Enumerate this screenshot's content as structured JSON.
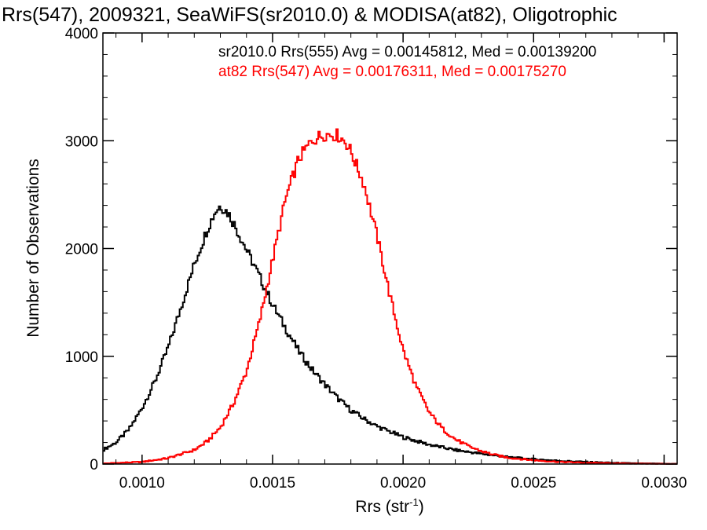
{
  "chart_data": {
    "type": "line",
    "title": "Rrs(547), 2009321, SeaWiFS(sr2010.0) & MODISA(at82), Oligotrophic",
    "xlabel": "Rrs (str",
    "xlabel_sup": "-1",
    "xlabel_close": ")",
    "ylabel": "Number of Observations",
    "xlim": [
      0.00085,
      0.00305
    ],
    "ylim": [
      0,
      4000
    ],
    "x_ticks": [
      0.001,
      0.0015,
      0.002,
      0.0025,
      0.003
    ],
    "x_tick_labels": [
      "0.0010",
      "0.0015",
      "0.0020",
      "0.0025",
      "0.0030"
    ],
    "y_ticks": [
      0,
      1000,
      2000,
      3000,
      4000
    ],
    "y_tick_labels": [
      "0",
      "1000",
      "2000",
      "3000",
      "4000"
    ],
    "grid": false,
    "legend_placement": "top-right",
    "annotations": [
      {
        "text": "sr2010.0 Rrs(555) Avg = 0.00145812, Med = 0.00139200",
        "color": "#000000"
      },
      {
        "text": "at82 Rrs(547) Avg = 0.00176311, Med = 0.00175270",
        "color": "#ff0000"
      }
    ],
    "series": [
      {
        "color": "#000000",
        "style": "step",
        "x": [
          0.00085,
          0.0009,
          0.00095,
          0.001,
          0.00105,
          0.0011,
          0.00115,
          0.0012,
          0.00125,
          0.00128,
          0.0013,
          0.00133,
          0.00135,
          0.0014,
          0.00145,
          0.0015,
          0.00155,
          0.0016,
          0.00165,
          0.0017,
          0.00175,
          0.0018,
          0.00185,
          0.0019,
          0.002,
          0.0021,
          0.0022,
          0.0023,
          0.0024,
          0.0025,
          0.0026,
          0.0027,
          0.0028,
          0.0029,
          0.003,
          0.00305
        ],
        "y": [
          130,
          200,
          320,
          520,
          770,
          1080,
          1460,
          1850,
          2180,
          2340,
          2400,
          2330,
          2240,
          1990,
          1740,
          1480,
          1260,
          1050,
          880,
          740,
          610,
          500,
          420,
          350,
          250,
          180,
          130,
          95,
          65,
          45,
          30,
          20,
          12,
          6,
          3,
          2
        ]
      },
      {
        "color": "#ff0000",
        "style": "step",
        "x": [
          0.00085,
          0.001,
          0.0011,
          0.0012,
          0.00125,
          0.0013,
          0.00135,
          0.0014,
          0.00145,
          0.0015,
          0.00155,
          0.0016,
          0.00165,
          0.00168,
          0.0017,
          0.00172,
          0.00175,
          0.00178,
          0.0018,
          0.00185,
          0.0019,
          0.00195,
          0.002,
          0.00205,
          0.0021,
          0.00215,
          0.0022,
          0.00225,
          0.0023,
          0.00235,
          0.0024,
          0.0025,
          0.0026,
          0.0027,
          0.0028,
          0.0029,
          0.003,
          0.00305
        ],
        "y": [
          5,
          20,
          55,
          130,
          210,
          340,
          560,
          860,
          1320,
          1890,
          2460,
          2830,
          3000,
          3040,
          3060,
          3060,
          3050,
          2990,
          2900,
          2600,
          2120,
          1560,
          1060,
          720,
          480,
          330,
          230,
          165,
          120,
          85,
          60,
          35,
          20,
          12,
          7,
          4,
          2,
          1
        ]
      }
    ]
  }
}
